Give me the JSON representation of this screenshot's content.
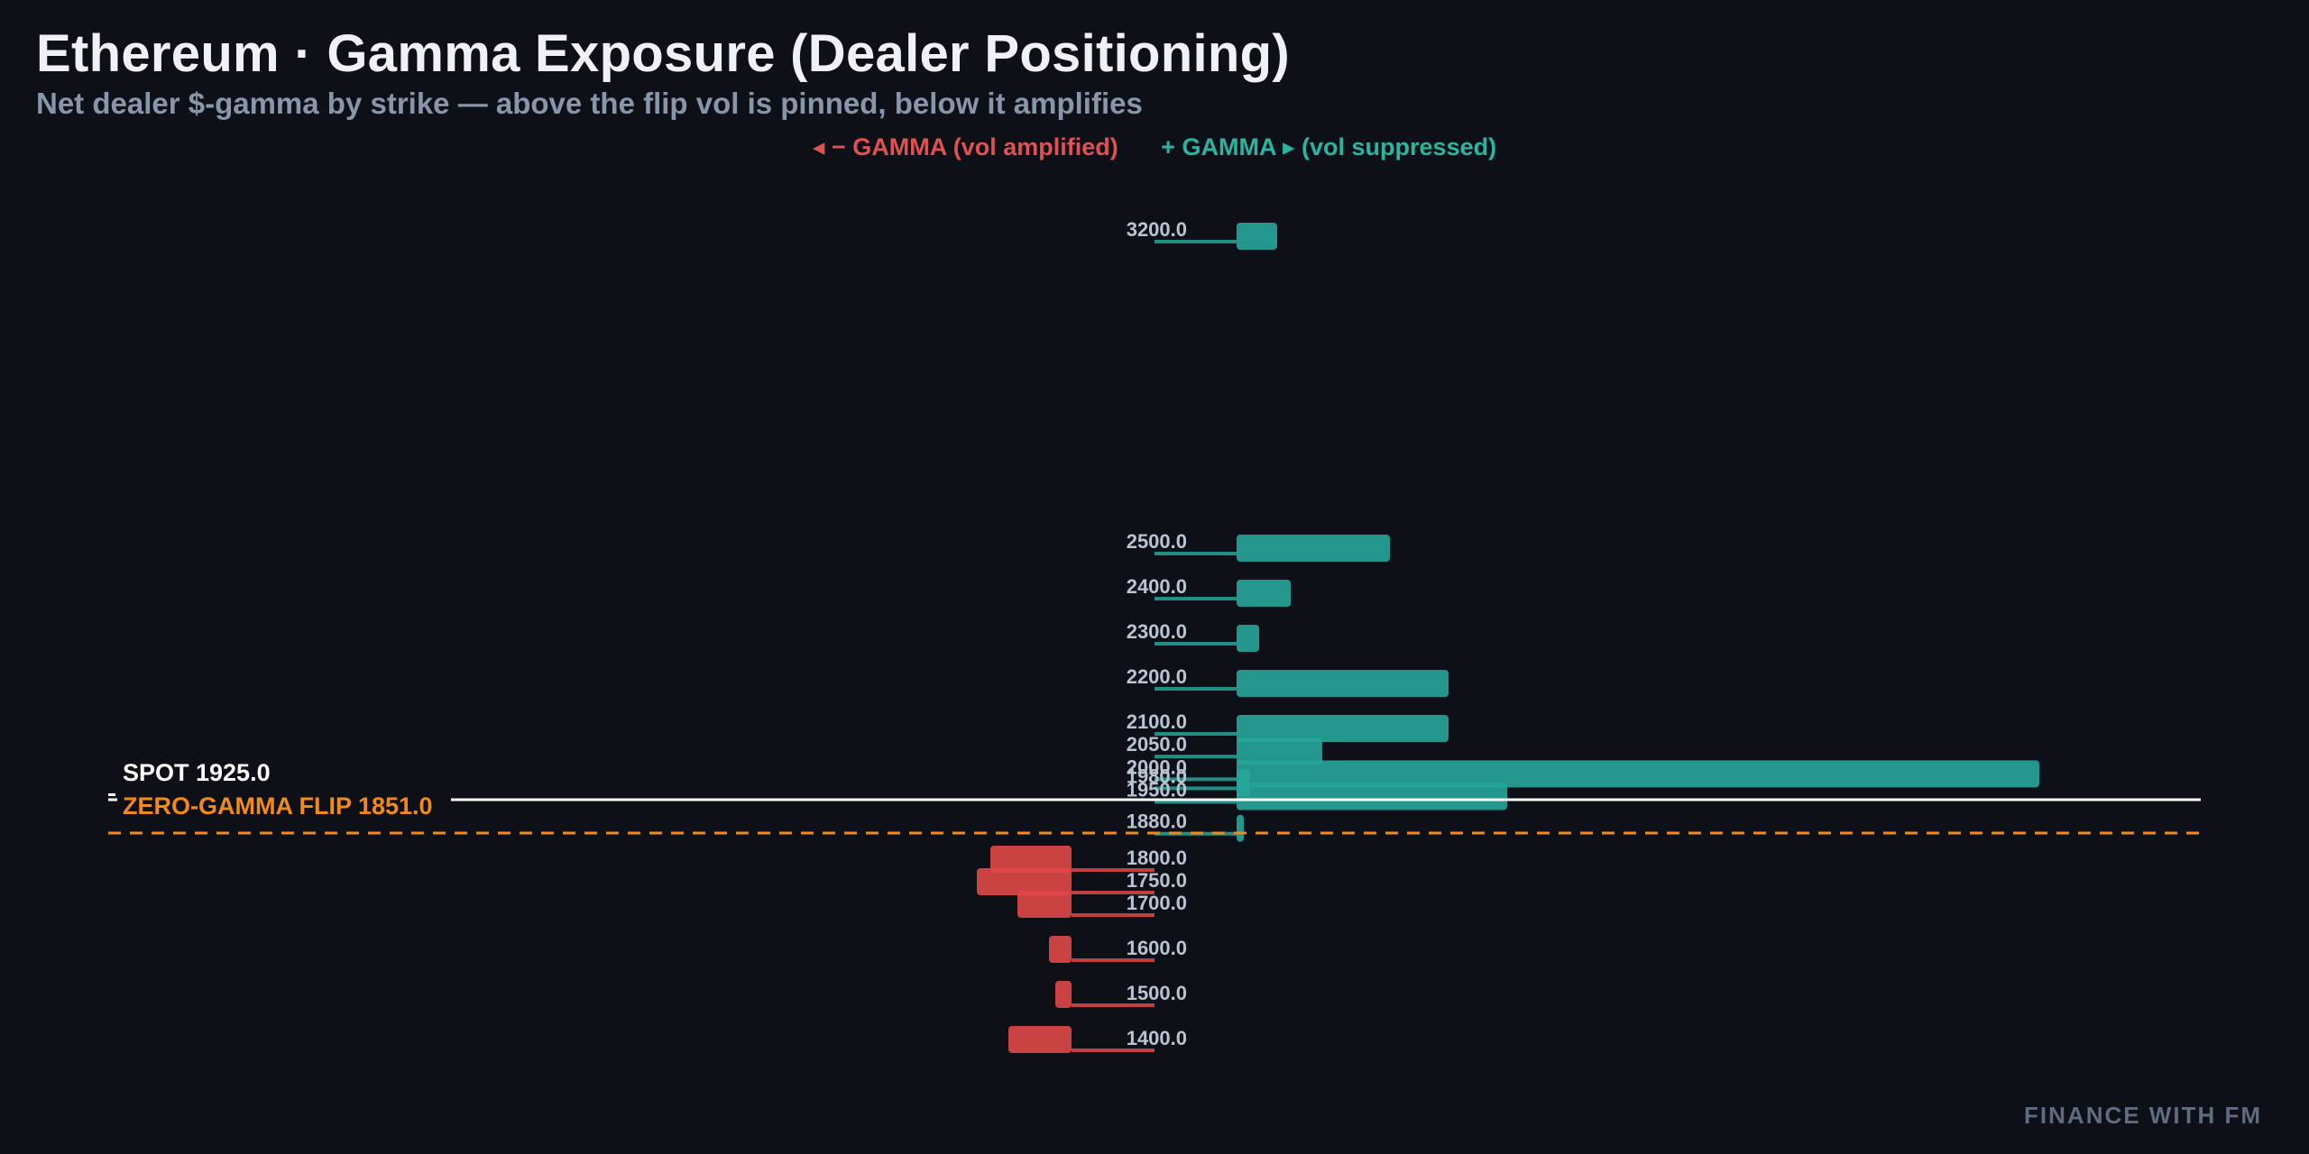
{
  "title": "Ethereum · Gamma Exposure (Dealer Positioning)",
  "subtitle": "Net dealer $-gamma by strike — above the flip vol is pinned, below it amplifies",
  "legend": {
    "negative": "◂ − GAMMA (vol amplified)",
    "positive": "+ GAMMA ▸ (vol suppressed)"
  },
  "watermark": "FINANCE WITH FM",
  "colors": {
    "positive": "#26a69a",
    "negative": "#e04848",
    "spot": "#ffffff",
    "flip": "#f28a1a",
    "background": "#0d1117"
  },
  "chart_data": {
    "type": "bar",
    "orientation": "horizontal",
    "categories": [
      "3200.0",
      "2500.0",
      "2400.0",
      "2300.0",
      "2200.0",
      "2100.0",
      "2050.0",
      "2000.0",
      "1980.0",
      "1950.0",
      "1880.0",
      "1800.0",
      "1750.0",
      "1700.0",
      "1600.0",
      "1500.0",
      "1400.0"
    ],
    "strikes": [
      3200,
      2500,
      2400,
      2300,
      2200,
      2100,
      2050,
      2000,
      1980,
      1950,
      1880,
      1800,
      1750,
      1700,
      1600,
      1500,
      1400
    ],
    "values": [
      0.45,
      1.7,
      0.6,
      0.25,
      2.35,
      2.35,
      0.95,
      8.9,
      0.15,
      3.0,
      0.08,
      -0.9,
      -1.05,
      -0.6,
      -0.25,
      -0.18,
      -0.7
    ],
    "spot": 1925.0,
    "zero_gamma_flip": 1851.0,
    "spot_label": "SPOT 1925.0",
    "flip_label": "ZERO-GAMMA FLIP 1851.0"
  }
}
